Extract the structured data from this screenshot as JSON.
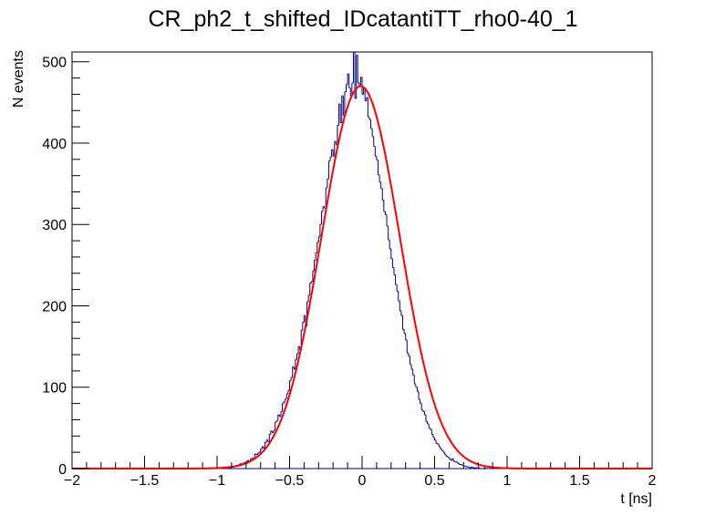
{
  "chart_data": {
    "type": "histogram",
    "title": "CR_ph2_t_shifted_IDcatantiTT_rho0-40_1",
    "xlabel": "t [ns]",
    "ylabel": "N events",
    "xlim": [
      -2,
      2
    ],
    "ylim": [
      0,
      512
    ],
    "x_ticks": [
      -2,
      -1.5,
      -1,
      -0.5,
      0,
      0.5,
      1,
      1.5,
      2
    ],
    "x_tick_labels": [
      "−2",
      "−1.5",
      "−1",
      "−0.5",
      "0",
      "0.5",
      "1",
      "1.5",
      "2"
    ],
    "y_ticks": [
      0,
      100,
      200,
      300,
      400,
      500
    ],
    "y_tick_labels": [
      "0",
      "100",
      "200",
      "300",
      "400",
      "500"
    ],
    "grid": false,
    "legend": "none",
    "histogram": {
      "color": "#000080",
      "bin_width": 0.01,
      "bin_centers_range": [
        -1.005,
        1.005
      ],
      "counts": [
        0,
        1,
        0,
        0,
        0,
        2,
        0,
        1,
        2,
        1,
        1,
        3,
        2,
        3,
        4,
        3,
        5,
        6,
        5,
        7,
        7,
        9,
        10,
        8,
        12,
        13,
        12,
        18,
        17,
        19,
        20,
        24,
        27,
        25,
        32,
        35,
        33,
        42,
        46,
        44,
        47,
        57,
        59,
        66,
        64,
        70,
        80,
        82,
        86,
        92,
        96,
        108,
        112,
        125,
        122,
        134,
        141,
        150,
        146,
        170,
        180,
        188,
        175,
        205,
        213,
        228,
        230,
        243,
        256,
        265,
        278,
        285,
        300,
        316,
        322,
        320,
        345,
        356,
        378,
        383,
        392,
        384,
        402,
        398,
        422,
        448,
        425,
        458,
        434,
        463,
        472,
        485,
        468,
        458,
        474,
        512,
        455,
        508,
        474,
        470,
        481,
        460,
        468,
        452,
        456,
        432,
        429,
        418,
        408,
        396,
        384,
        379,
        361,
        352,
        344,
        330,
        316,
        312,
        298,
        281,
        270,
        258,
        247,
        238,
        226,
        218,
        206,
        194,
        188,
        171,
        166,
        158,
        142,
        138,
        128,
        122,
        115,
        104,
        100,
        95,
        85,
        80,
        72,
        70,
        66,
        58,
        55,
        50,
        48,
        42,
        38,
        35,
        31,
        30,
        27,
        24,
        22,
        20,
        17,
        15,
        14,
        12,
        10,
        12,
        9,
        8,
        8,
        6,
        5,
        5,
        4,
        3,
        3,
        2,
        2,
        1,
        2,
        1,
        1,
        1,
        0,
        1,
        0,
        0,
        0,
        1,
        0,
        0,
        0,
        0,
        0,
        0,
        0,
        0,
        0,
        0,
        0,
        0,
        0,
        0,
        0,
        0
      ]
    },
    "fit": {
      "function": "gaus",
      "color": "#ff0000",
      "amplitude": 470,
      "mean": -0.01,
      "sigma": 0.27
    }
  }
}
